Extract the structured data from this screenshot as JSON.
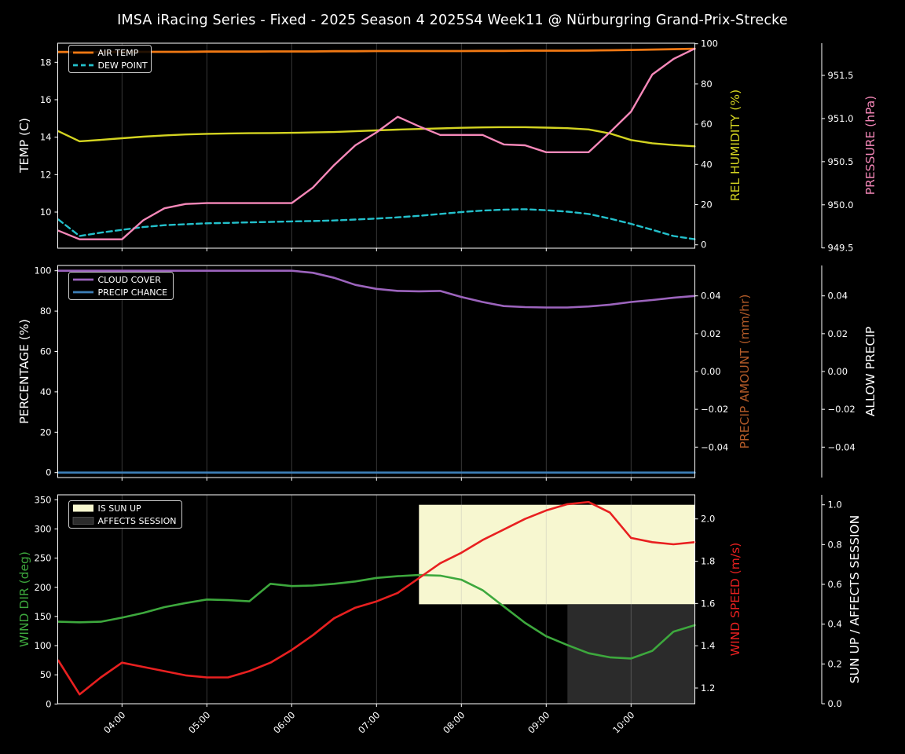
{
  "title": "IMSA iRacing Series - Fixed - 2025 Season 4 2025S4 Week11 @ Nürburgring Grand-Prix-Strecke",
  "colors": {
    "background": "#000000",
    "text": "#ffffff",
    "spine": "#ffffff",
    "grid": "rgba(176,176,176,0.35)",
    "legend_border": "#cccccc",
    "air_temp": "#f07813",
    "dew_point": "#23c0cb",
    "rel_humidity": "#d4d421",
    "pressure": "#f688b9",
    "cloud_cover": "#9c64bd",
    "precip_chance": "#3d7fb8",
    "precip_amount": "#b25a28",
    "wind_dir": "#3da83d",
    "wind_speed": "#e82020",
    "sun_up_fill": "#f7f7d0",
    "affects_session_fill": "#2b2b2b"
  },
  "x_axis": {
    "t_start": 3.25,
    "t_step": 0.25,
    "times": [
      "03:15",
      "03:30",
      "03:45",
      "04:00",
      "04:15",
      "04:30",
      "04:45",
      "05:00",
      "05:15",
      "05:30",
      "05:45",
      "06:00",
      "06:15",
      "06:30",
      "06:45",
      "07:00",
      "07:15",
      "07:30",
      "07:45",
      "08:00",
      "08:15",
      "08:30",
      "08:45",
      "09:00",
      "09:15",
      "09:30",
      "09:45",
      "10:00",
      "10:15",
      "10:30",
      "10:45"
    ],
    "tick_values": [
      4,
      5,
      6,
      7,
      8,
      9,
      10
    ],
    "tick_labels": [
      "04:00",
      "05:00",
      "06:00",
      "07:00",
      "08:00",
      "09:00",
      "10:00"
    ]
  },
  "chart_data": [
    {
      "type": "line",
      "panel": "temperature-humidity-pressure",
      "axes": {
        "left": {
          "label": "TEMP (C)",
          "color": "#ffffff",
          "tick_values": [
            10,
            12,
            14,
            16,
            18
          ],
          "tick_labels": [
            "10",
            "12",
            "14",
            "16",
            "18"
          ],
          "range": [
            8.1,
            19.0
          ]
        },
        "right": {
          "label": "REL HUMIDITY (%)",
          "color": "#d4d421",
          "tick_values": [
            0,
            20,
            40,
            60,
            80,
            100
          ],
          "tick_labels": [
            "0",
            "20",
            "40",
            "60",
            "80",
            "100"
          ],
          "range": [
            -1.7,
            100.3
          ]
        },
        "offset": {
          "label": "PRESSURE (hPa)",
          "color": "#f688b9",
          "tick_values": [
            949.5,
            950.0,
            950.5,
            951.0,
            951.5
          ],
          "tick_labels": [
            "949.5",
            "950.0",
            "950.5",
            "951.0",
            "951.5"
          ],
          "range": [
            949.5,
            951.87
          ]
        }
      },
      "legend": [
        {
          "label": "AIR TEMP",
          "type": "line",
          "color": "#f07813",
          "style": "solid"
        },
        {
          "label": "DEW POINT",
          "type": "line",
          "color": "#23c0cb",
          "style": "dashed"
        }
      ],
      "series": [
        {
          "name": "AIR TEMP",
          "axis": "left",
          "color": "#f07813",
          "width": 2.8,
          "dash": null,
          "values": [
            18.55,
            18.55,
            18.55,
            18.55,
            18.56,
            18.56,
            18.56,
            18.57,
            18.57,
            18.57,
            18.58,
            18.58,
            18.58,
            18.59,
            18.59,
            18.6,
            18.6,
            18.6,
            18.6,
            18.6,
            18.61,
            18.61,
            18.62,
            18.62,
            18.62,
            18.63,
            18.64,
            18.66,
            18.68,
            18.7,
            18.72
          ]
        },
        {
          "name": "DEW POINT",
          "axis": "left",
          "color": "#23c0cb",
          "width": 2.4,
          "dash": "7,4.5",
          "values": [
            9.6,
            8.72,
            8.9,
            9.05,
            9.2,
            9.3,
            9.35,
            9.4,
            9.42,
            9.45,
            9.47,
            9.5,
            9.52,
            9.55,
            9.6,
            9.65,
            9.72,
            9.8,
            9.9,
            10.0,
            10.08,
            10.13,
            10.15,
            10.1,
            10.02,
            9.9,
            9.65,
            9.37,
            9.05,
            8.72,
            8.55
          ]
        },
        {
          "name": "REL HUMIDITY",
          "axis": "right",
          "color": "#d4d421",
          "width": 2.4,
          "dash": null,
          "values": [
            56.5,
            51.5,
            52.2,
            53.0,
            53.8,
            54.4,
            54.9,
            55.2,
            55.4,
            55.5,
            55.6,
            55.7,
            55.9,
            56.1,
            56.5,
            56.9,
            57.3,
            57.6,
            57.9,
            58.2,
            58.4,
            58.5,
            58.5,
            58.3,
            58.0,
            57.4,
            55.4,
            52.1,
            50.5,
            49.6,
            49.0
          ]
        },
        {
          "name": "PRESSURE",
          "axis": "offset",
          "color": "#f688b9",
          "width": 2.4,
          "dash": null,
          "values": [
            949.7,
            949.6,
            949.6,
            949.6,
            949.82,
            949.96,
            950.01,
            950.02,
            950.02,
            950.02,
            950.02,
            950.02,
            950.2,
            950.46,
            950.69,
            950.84,
            951.02,
            950.91,
            950.81,
            950.81,
            950.81,
            950.7,
            950.69,
            950.61,
            950.61,
            950.61,
            950.84,
            951.08,
            951.51,
            951.69,
            951.81
          ]
        }
      ],
      "regions": []
    },
    {
      "type": "line",
      "panel": "cloud-precip",
      "axes": {
        "left": {
          "label": "PERCENTAGE (%)",
          "color": "#ffffff",
          "tick_values": [
            0,
            20,
            40,
            60,
            80,
            100
          ],
          "tick_labels": [
            "0",
            "20",
            "40",
            "60",
            "80",
            "100"
          ],
          "range": [
            -2.4,
            102.6
          ]
        },
        "right": {
          "label": "PRECIP AMOUNT (mm/hr)",
          "color": "#b25a28",
          "tick_values": [
            0.04,
            0.02,
            0.0,
            -0.02,
            -0.04
          ],
          "tick_labels": [
            "0.04",
            "0.02",
            "0.00",
            "−0.02",
            "−0.04"
          ],
          "range": [
            -0.056,
            0.056
          ]
        },
        "offset": {
          "label": "ALLOW PRECIP",
          "color": "#ffffff",
          "tick_values": [
            0.04,
            0.02,
            0.0,
            -0.02,
            -0.04
          ],
          "tick_labels": [
            "0.04",
            "0.02",
            "0.00",
            "−0.02",
            "−0.04"
          ],
          "range": [
            -0.056,
            0.056
          ]
        }
      },
      "legend": [
        {
          "label": "CLOUD COVER",
          "type": "line",
          "color": "#9c64bd",
          "style": "solid"
        },
        {
          "label": "PRECIP CHANCE",
          "type": "line",
          "color": "#3d7fb8",
          "style": "solid"
        }
      ],
      "series": [
        {
          "name": "CLOUD COVER",
          "axis": "left",
          "color": "#9c64bd",
          "width": 2.6,
          "dash": null,
          "values": [
            100,
            100,
            100,
            100,
            100,
            100,
            100,
            100,
            100,
            100,
            100,
            100,
            99,
            96.5,
            93,
            91,
            90,
            89.8,
            90,
            87,
            84.5,
            82.5,
            82,
            81.8,
            81.8,
            82.3,
            83.2,
            84.5,
            85.5,
            86.6,
            87.5
          ]
        },
        {
          "name": "PRECIP CHANCE",
          "axis": "left",
          "color": "#3d7fb8",
          "width": 2.6,
          "dash": null,
          "values": [
            0,
            0,
            0,
            0,
            0,
            0,
            0,
            0,
            0,
            0,
            0,
            0,
            0,
            0,
            0,
            0,
            0,
            0,
            0,
            0,
            0,
            0,
            0,
            0,
            0,
            0,
            0,
            0,
            0,
            0,
            0
          ]
        }
      ],
      "regions": []
    },
    {
      "type": "line",
      "panel": "wind-sun",
      "axes": {
        "left": {
          "label": "WIND DIR (deg)",
          "color": "#3da83d",
          "tick_values": [
            0,
            50,
            100,
            150,
            200,
            250,
            300,
            350
          ],
          "tick_labels": [
            "0",
            "50",
            "100",
            "150",
            "200",
            "250",
            "300",
            "350"
          ],
          "range": [
            0,
            358.5
          ]
        },
        "right": {
          "label": "WIND SPEED (m/s)",
          "color": "#e82020",
          "tick_values": [
            1.2,
            1.4,
            1.6,
            1.8,
            2.0
          ],
          "tick_labels": [
            "1.2",
            "1.4",
            "1.6",
            "1.8",
            "2.0"
          ],
          "range": [
            1.13,
            2.11
          ]
        },
        "offset": {
          "label": "SUN UP / AFFECTS SESSION",
          "color": "#ffffff",
          "tick_values": [
            0.0,
            0.2,
            0.4,
            0.6,
            0.8,
            1.0
          ],
          "tick_labels": [
            "0.0",
            "0.2",
            "0.4",
            "0.6",
            "0.8",
            "1.0"
          ],
          "range": [
            0.0,
            1.05
          ]
        }
      },
      "legend": [
        {
          "label": "IS SUN UP",
          "type": "patch",
          "color": "#f7f7d0",
          "style": "solid"
        },
        {
          "label": "AFFECTS SESSION",
          "type": "patch",
          "color": "#2b2b2b",
          "style": "solid"
        }
      ],
      "series": [
        {
          "name": "WIND DIR",
          "axis": "left",
          "color": "#3da83d",
          "width": 2.6,
          "dash": null,
          "values": [
            141,
            140,
            141,
            148,
            156,
            166,
            173,
            179,
            178,
            176,
            206,
            202,
            203,
            206,
            210,
            216,
            219,
            221,
            220,
            213,
            195,
            167,
            139,
            116,
            101,
            87,
            80,
            78,
            91,
            124,
            135
          ]
        },
        {
          "name": "WIND SPEED",
          "axis": "right",
          "color": "#e82020",
          "width": 2.6,
          "dash": null,
          "values": [
            1.33,
            1.17,
            1.25,
            1.32,
            1.3,
            1.28,
            1.26,
            1.25,
            1.25,
            1.28,
            1.32,
            1.38,
            1.45,
            1.53,
            1.58,
            1.61,
            1.65,
            1.72,
            1.79,
            1.84,
            1.9,
            1.95,
            2.0,
            2.04,
            2.07,
            2.08,
            2.03,
            1.91,
            1.89,
            1.88,
            1.89
          ]
        }
      ],
      "regions": [
        {
          "name": "IS SUN UP",
          "x": [
            7.5,
            10.75
          ],
          "y": [
            0.5,
            1.0
          ],
          "axis": "offset",
          "color": "#f7f7d0"
        },
        {
          "name": "AFFECTS SESSION",
          "x": [
            9.25,
            10.75
          ],
          "y": [
            0.0,
            0.5
          ],
          "axis": "offset",
          "color": "#2b2b2b"
        }
      ]
    }
  ]
}
